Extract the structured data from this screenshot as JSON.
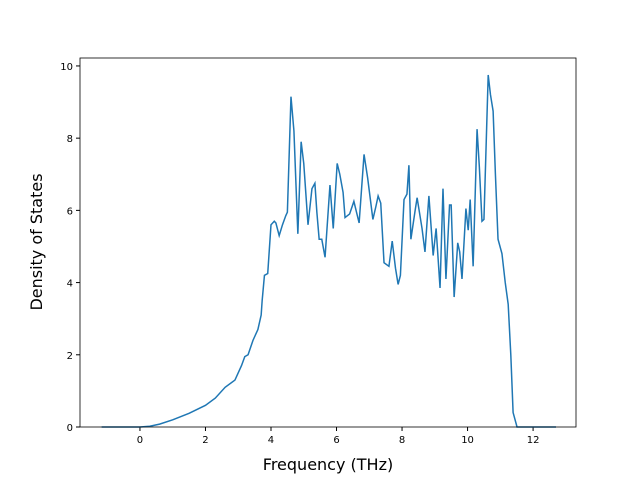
{
  "chart_data": {
    "type": "line",
    "xlabel": "Frequency (THz)",
    "ylabel": "Density of States",
    "x": [
      -1.17,
      0,
      0.3,
      0.6,
      1.0,
      1.5,
      2.0,
      2.3,
      2.6,
      2.9,
      3.05,
      3.1,
      3.2,
      3.3,
      3.45,
      3.6,
      3.7,
      3.73,
      3.8,
      3.9,
      4.0,
      4.1,
      4.15,
      4.25,
      4.35,
      4.45,
      4.5,
      4.61,
      4.7,
      4.82,
      4.92,
      5.0,
      5.13,
      5.25,
      5.34,
      5.4,
      5.47,
      5.55,
      5.65,
      5.8,
      5.9,
      6.02,
      6.1,
      6.2,
      6.26,
      6.4,
      6.53,
      6.69,
      6.84,
      6.95,
      7.11,
      7.2,
      7.27,
      7.35,
      7.45,
      7.6,
      7.7,
      7.8,
      7.88,
      7.95,
      8.06,
      8.15,
      8.21,
      8.27,
      8.4,
      8.46,
      8.61,
      8.7,
      8.82,
      8.95,
      9.04,
      9.16,
      9.25,
      9.34,
      9.45,
      9.5,
      9.59,
      9.7,
      9.76,
      9.83,
      9.95,
      10.02,
      10.08,
      10.17,
      10.29,
      10.36,
      10.44,
      10.5,
      10.63,
      10.7,
      10.78,
      10.85,
      10.93,
      11.05,
      11.15,
      11.24,
      11.32,
      11.39,
      11.51,
      12.7
    ],
    "series": [
      {
        "color": "#1f77b4",
        "values": [
          0,
          0,
          0.02,
          0.08,
          0.2,
          0.38,
          0.6,
          0.8,
          1.1,
          1.3,
          1.6,
          1.7,
          1.95,
          2.0,
          2.4,
          2.7,
          3.1,
          3.5,
          4.2,
          4.25,
          5.6,
          5.7,
          5.65,
          5.3,
          5.6,
          5.85,
          5.95,
          9.15,
          8.2,
          5.35,
          7.9,
          7.3,
          5.6,
          6.6,
          6.75,
          5.95,
          5.2,
          5.2,
          4.7,
          6.7,
          5.5,
          7.3,
          7.0,
          6.5,
          5.8,
          5.9,
          6.25,
          5.65,
          7.55,
          6.9,
          5.75,
          6.1,
          6.4,
          6.2,
          4.55,
          4.45,
          5.15,
          4.4,
          3.95,
          4.2,
          6.3,
          6.45,
          7.25,
          5.2,
          6.0,
          6.35,
          5.5,
          4.85,
          6.4,
          4.75,
          5.5,
          3.85,
          6.6,
          4.1,
          6.15,
          6.15,
          3.6,
          5.1,
          4.85,
          4.1,
          6.05,
          5.45,
          6.3,
          4.45,
          8.25,
          7.2,
          5.7,
          5.75,
          9.75,
          9.2,
          8.75,
          7.0,
          5.2,
          4.8,
          4.0,
          3.4,
          2.0,
          0.4,
          0,
          0
        ]
      }
    ],
    "xlim": [
      -1.83,
      13.31
    ],
    "ylim": [
      0,
      10.22
    ],
    "xticks": [
      0,
      2,
      4,
      6,
      8,
      10,
      12
    ],
    "yticks": [
      0,
      2,
      4,
      6,
      8,
      10
    ]
  }
}
